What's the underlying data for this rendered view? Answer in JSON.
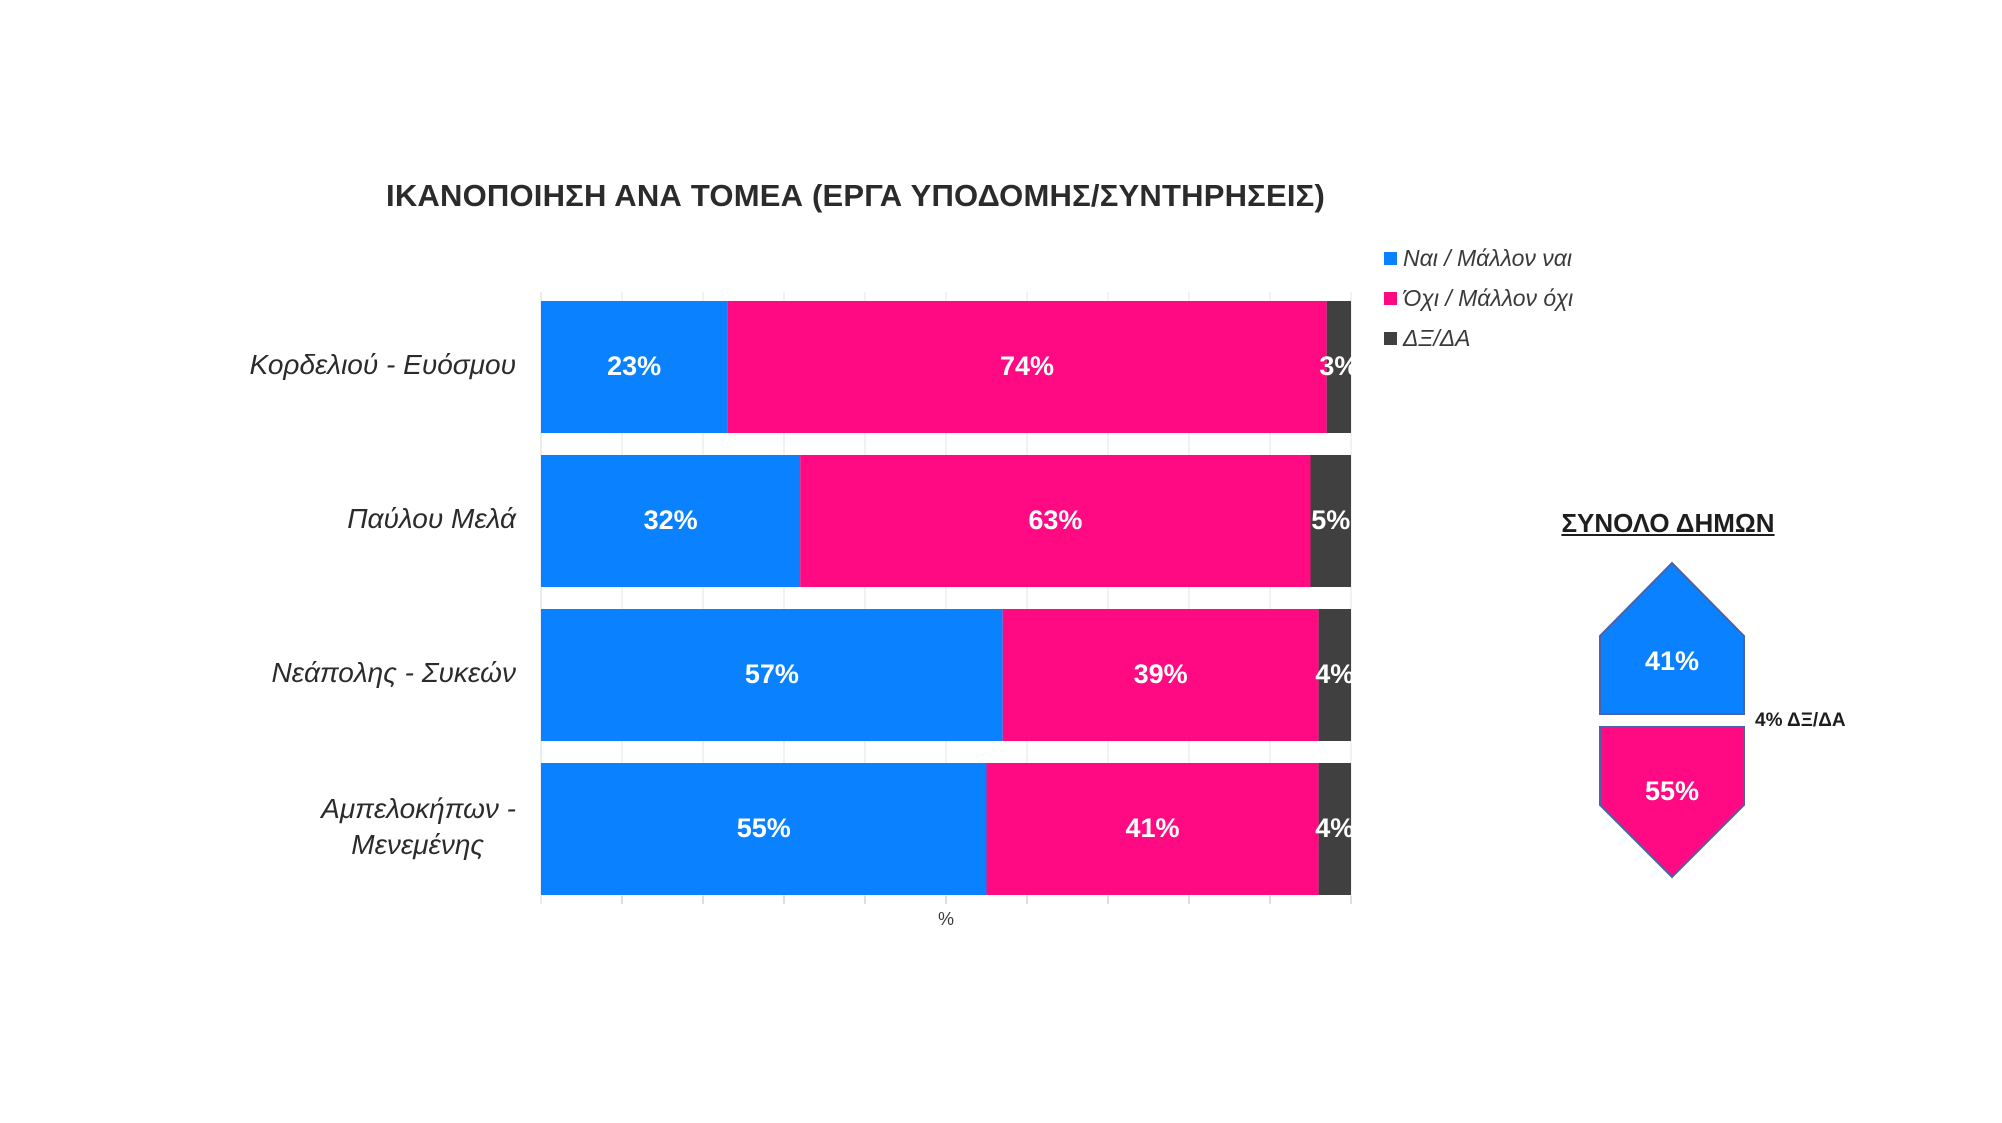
{
  "chart_data": [
    {
      "type": "bar",
      "orientation": "horizontal",
      "stacked": true,
      "title": "ΙΚΑΝΟΠΟΙΗΣΗ ΑΝΑ ΤΟΜΕΑ (ΕΡΓΑ ΥΠΟΔΟΜΗΣ/ΣΥΝΤΗΡΗΣΕΙΣ)",
      "categories": [
        "Κορδελιού - Ευόσμου",
        "Παύλου Μελά",
        "Νεάπολης - Συκεών",
        "Αμπελοκήπων - Μενεμένης"
      ],
      "series": [
        {
          "name": "Ναι / Μάλλον ναι",
          "color": "#0A82FF",
          "values": [
            23,
            32,
            57,
            55
          ]
        },
        {
          "name": "Όχι / Μάλλον όχι",
          "color": "#FF0A82",
          "values": [
            74,
            63,
            39,
            41
          ]
        },
        {
          "name": "ΔΞ/ΔΑ",
          "color": "#404040",
          "values": [
            3,
            5,
            4,
            4
          ]
        }
      ],
      "xlabel": "%",
      "ylabel": "",
      "xlim": [
        0,
        100
      ],
      "grid": true,
      "legend": "top-right",
      "value_suffix": "%"
    },
    {
      "type": "summary-shapes",
      "title": "ΣΥΝΟΛΟ ΔΗΜΩΝ",
      "values": [
        {
          "name": "Ναι / Μάλλον ναι",
          "value": 41,
          "label": "41%",
          "color": "#0A82FF"
        },
        {
          "name": "Όχι / Μάλλον όχι",
          "value": 55,
          "label": "55%",
          "color": "#FF0A82"
        }
      ],
      "other_note": "4% ΔΞ/ΔΑ"
    }
  ]
}
